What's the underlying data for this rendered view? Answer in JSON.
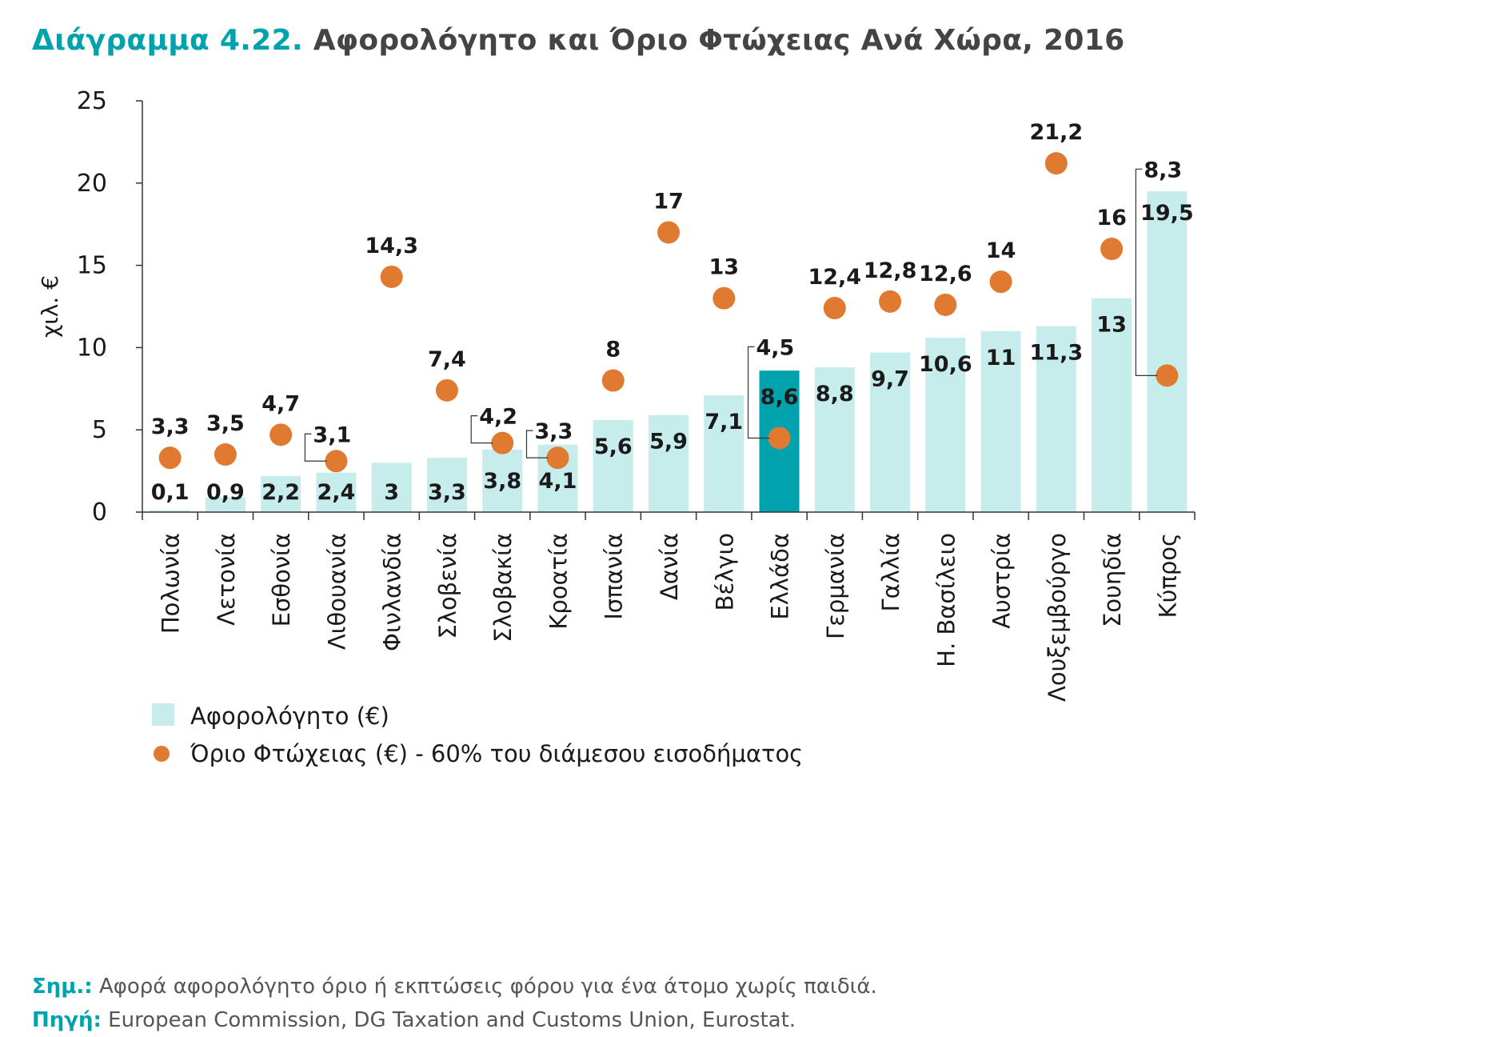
{
  "title": {
    "number": "Διάγραμμα 4.22.",
    "text": "Αφορολόγητο και Όριο Φτώχειας Ανά Χώρα, 2016"
  },
  "notes": {
    "note_label": "Σημ.:",
    "note_text": "Αφορά αφορολόγητο όριο ή εκπτώσεις φόρου για ένα άτομο χωρίς παιδιά.",
    "source_label": "Πηγή:",
    "source_text": "European Commission, DG Taxation and Customs Union, Eurostat."
  },
  "colors": {
    "bar": "#c6ecec",
    "highlight": "#00a3ad",
    "dot": "#e07a30",
    "accent": "#00a3ad"
  },
  "chart_data": {
    "type": "bar",
    "ylabel": "χιλ. €",
    "ylim": [
      0,
      25
    ],
    "yticks": [
      0,
      5,
      10,
      15,
      20,
      25
    ],
    "grid": false,
    "legend_position": "bottom-left",
    "categories": [
      "Πολωνία",
      "Λετονία",
      "Εσθονία",
      "Λιθουανία",
      "Φινλανδία",
      "Σλοβενία",
      "Σλοβακία",
      "Κροατία",
      "Ισπανία",
      "Δανία",
      "Βέλγιο",
      "Ελλάδα",
      "Γερμανία",
      "Γαλλία",
      "Η. Βασίλειο",
      "Αυστρία",
      "Λουξεμβούργο",
      "Σουηδία",
      "Κύπρος"
    ],
    "highlight_category": "Ελλάδα",
    "series": [
      {
        "name": "Αφορολόγητο (€)",
        "type": "bar",
        "values": [
          0.1,
          0.9,
          2.2,
          2.4,
          3,
          3.3,
          3.8,
          4.1,
          5.6,
          5.9,
          7.1,
          8.6,
          8.8,
          9.7,
          10.6,
          11,
          11.3,
          13,
          19.5
        ],
        "labels": [
          "0,1",
          "0,9",
          "2,2",
          "2,4",
          "3",
          "3,3",
          "3,8",
          "4,1",
          "5,6",
          "5,9",
          "7,1",
          "8,6",
          "8,8",
          "9,7",
          "10,6",
          "11",
          "11,3",
          "13",
          "19,5"
        ]
      },
      {
        "name": "Όριο Φτώχειας (€) - 60% του διάμεσου εισοδήματος",
        "type": "scatter",
        "values": [
          3.3,
          3.5,
          4.7,
          3.1,
          14.3,
          7.4,
          4.2,
          3.3,
          8,
          17,
          13,
          4.5,
          12.4,
          12.8,
          12.6,
          14,
          21.2,
          16,
          8.3
        ],
        "labels": [
          "3,3",
          "3,5",
          "4,7",
          "3,1",
          "14,3",
          "7,4",
          "4,2",
          "3,3",
          "8",
          "17",
          "13",
          "4,5",
          "12,4",
          "12,8",
          "12,6",
          "14",
          "21,2",
          "16",
          "8,3"
        ]
      }
    ]
  }
}
